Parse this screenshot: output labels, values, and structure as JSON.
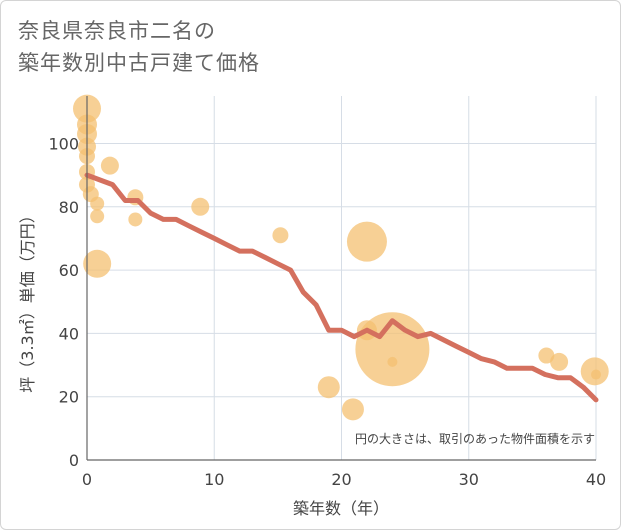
{
  "title_line1": "奈良県奈良市二名の",
  "title_line2": "築年数別中古戸建て価格",
  "chart_data": {
    "type": "scatter",
    "xlabel": "築年数（年）",
    "ylabel": "坪（3.3㎡）単価（万円）",
    "xlim": [
      0,
      40
    ],
    "ylim": [
      0,
      115
    ],
    "xticks": [
      0,
      10,
      20,
      30,
      40
    ],
    "yticks": [
      0,
      20,
      40,
      60,
      80,
      100
    ],
    "grid": true,
    "note": "円の大きさは、取引のあった物件面積を示す",
    "colors": {
      "bubble": "#f4c072",
      "line": "#d4705e",
      "grid": "#d6dde6",
      "axis": "#666666"
    },
    "points": [
      {
        "x": 0,
        "y": 111,
        "s": 14
      },
      {
        "x": 0,
        "y": 106,
        "s": 10
      },
      {
        "x": 0,
        "y": 103,
        "s": 10
      },
      {
        "x": 0,
        "y": 99,
        "s": 9
      },
      {
        "x": 0,
        "y": 96,
        "s": 8
      },
      {
        "x": 0,
        "y": 91,
        "s": 8
      },
      {
        "x": 0,
        "y": 87,
        "s": 8
      },
      {
        "x": 0.3,
        "y": 84,
        "s": 8
      },
      {
        "x": 0.8,
        "y": 81,
        "s": 7
      },
      {
        "x": 0.8,
        "y": 77,
        "s": 7
      },
      {
        "x": 0.8,
        "y": 62,
        "s": 14
      },
      {
        "x": 1.8,
        "y": 93,
        "s": 9
      },
      {
        "x": 3.8,
        "y": 83,
        "s": 8
      },
      {
        "x": 3.8,
        "y": 76,
        "s": 7
      },
      {
        "x": 8.9,
        "y": 80,
        "s": 9
      },
      {
        "x": 15.2,
        "y": 71,
        "s": 8
      },
      {
        "x": 19.0,
        "y": 23,
        "s": 11
      },
      {
        "x": 20.9,
        "y": 16,
        "s": 11
      },
      {
        "x": 22.0,
        "y": 69,
        "s": 20
      },
      {
        "x": 22.0,
        "y": 41,
        "s": 10
      },
      {
        "x": 24.0,
        "y": 35,
        "s": 37
      },
      {
        "x": 24.0,
        "y": 31,
        "s": 5
      },
      {
        "x": 36.1,
        "y": 33,
        "s": 8
      },
      {
        "x": 37.1,
        "y": 31,
        "s": 9
      },
      {
        "x": 39.9,
        "y": 28,
        "s": 14
      },
      {
        "x": 40.0,
        "y": 27,
        "s": 5
      }
    ],
    "trend": {
      "x": [
        0,
        2,
        3,
        4,
        5,
        6,
        7,
        8,
        9,
        10,
        11,
        12,
        13,
        14,
        15,
        16,
        17,
        18,
        19,
        20,
        21,
        22,
        23,
        24,
        25,
        26,
        27,
        28,
        29,
        30,
        31,
        32,
        33,
        34,
        35,
        36,
        37,
        38,
        39,
        40
      ],
      "y": [
        90,
        87,
        82,
        82,
        78,
        76,
        76,
        74,
        72,
        70,
        68,
        66,
        66,
        64,
        62,
        60,
        53,
        49,
        41,
        41,
        39,
        41,
        39,
        44,
        41,
        39,
        40,
        38,
        36,
        34,
        32,
        31,
        29,
        29,
        29,
        27,
        26,
        26,
        23,
        19
      ]
    }
  }
}
